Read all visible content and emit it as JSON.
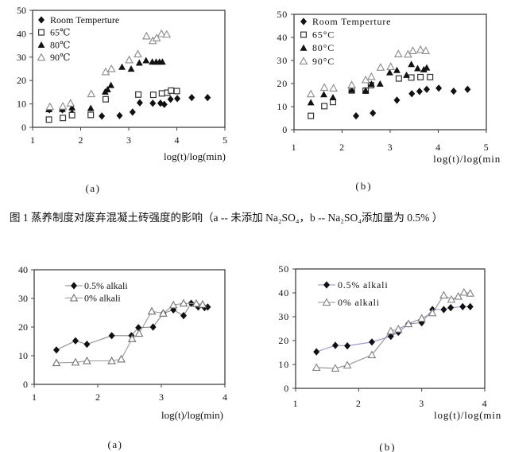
{
  "caption": {
    "text": "图 1 蒸养制度对废弃混凝土砖强度的影响（a -- 未添加 Na₂SO₄，b -- Na₂SO₄添加量为 0.5% ）"
  },
  "colors": {
    "frame": "#404040",
    "marker_black": "#111111",
    "open_square_stroke": "#333333",
    "open_triangle_stroke": "#8a8a8a",
    "line_gray": "#949494",
    "line_blue": "#9191cc"
  },
  "chart_data": [
    {
      "id": "top_a",
      "type": "scatter",
      "sub_label": "(a)",
      "xlabel": "log(t)/log(min)",
      "ylabel": "",
      "xlim": [
        1,
        5
      ],
      "ylim": [
        0,
        50
      ],
      "xticks": [
        1,
        2,
        3,
        4,
        5
      ],
      "yticks": [
        0,
        10,
        20,
        30,
        40,
        50
      ],
      "grid": false,
      "legend_position": "top-left-inside",
      "series": [
        {
          "name": "Room Temperture",
          "marker": "diamond-filled",
          "fill": "#111111",
          "points": [
            [
              1.35,
              7.5
            ],
            [
              1.62,
              7.5
            ],
            [
              1.82,
              6.0
            ],
            [
              2.44,
              4.8
            ],
            [
              2.81,
              5.0
            ],
            [
              3.08,
              6.5
            ],
            [
              3.23,
              10.5
            ],
            [
              3.5,
              10.3
            ],
            [
              3.66,
              10.3
            ],
            [
              3.74,
              9.8
            ],
            [
              3.87,
              12.0
            ],
            [
              4.01,
              12.3
            ],
            [
              4.31,
              12.7
            ],
            [
              4.64,
              12.7
            ]
          ]
        },
        {
          "name": "65℃",
          "marker": "square-open",
          "stroke": "#333333",
          "points": [
            [
              1.34,
              3.3
            ],
            [
              1.63,
              4.0
            ],
            [
              1.82,
              5.2
            ],
            [
              2.21,
              5.3
            ],
            [
              2.52,
              12.0
            ],
            [
              3.2,
              14.0
            ],
            [
              3.51,
              13.9
            ],
            [
              3.69,
              14.5
            ],
            [
              3.8,
              14.8
            ],
            [
              3.88,
              15.7
            ],
            [
              4.0,
              15.5
            ]
          ]
        },
        {
          "name": "80℃",
          "marker": "triangle-filled",
          "fill": "#111111",
          "points": [
            [
              1.34,
              7.7
            ],
            [
              1.62,
              7.8
            ],
            [
              1.82,
              8.5
            ],
            [
              2.21,
              8.2
            ],
            [
              2.51,
              15.2
            ],
            [
              2.56,
              16.2
            ],
            [
              2.63,
              18.0
            ],
            [
              2.86,
              25.8
            ],
            [
              3.05,
              25.0
            ],
            [
              3.22,
              27.6
            ],
            [
              3.36,
              28.6
            ],
            [
              3.49,
              28.0
            ],
            [
              3.57,
              28.0
            ],
            [
              3.64,
              28.0
            ],
            [
              3.7,
              28.0
            ]
          ]
        },
        {
          "name": "90℃",
          "marker": "triangle-open",
          "stroke": "#8a8a8a",
          "points": [
            [
              1.36,
              8.8
            ],
            [
              1.63,
              9.0
            ],
            [
              1.79,
              10.3
            ],
            [
              2.22,
              14.3
            ],
            [
              2.52,
              23.7
            ],
            [
              2.64,
              25.0
            ],
            [
              3.01,
              28.8
            ],
            [
              3.19,
              31.3
            ],
            [
              3.37,
              39.0
            ],
            [
              3.5,
              37.0
            ],
            [
              3.58,
              38.2
            ],
            [
              3.68,
              40.0
            ],
            [
              3.79,
              39.7
            ]
          ]
        }
      ]
    },
    {
      "id": "top_b",
      "type": "scatter",
      "sub_label": "(b)",
      "xlabel": "log(t)/log(min",
      "ylabel": "",
      "xlim": [
        1,
        5
      ],
      "ylim": [
        0,
        50
      ],
      "xticks": [
        1,
        2,
        3,
        4,
        5
      ],
      "yticks": [
        0,
        10,
        20,
        30,
        40,
        50
      ],
      "grid": false,
      "legend_position": "top-left-inside",
      "series": [
        {
          "name": "Room Temperture",
          "marker": "diamond-filled",
          "fill": "#111111",
          "points": [
            [
              2.29,
              6.0
            ],
            [
              2.64,
              7.2
            ],
            [
              3.14,
              12.8
            ],
            [
              3.45,
              15.6
            ],
            [
              3.61,
              16.6
            ],
            [
              3.76,
              17.5
            ],
            [
              4.01,
              18.0
            ],
            [
              4.32,
              16.7
            ],
            [
              4.61,
              17.5
            ]
          ]
        },
        {
          "name": "65°C",
          "marker": "square-open",
          "stroke": "#333333",
          "points": [
            [
              1.35,
              6.0
            ],
            [
              1.63,
              10.2
            ],
            [
              1.81,
              12.0
            ],
            [
              2.2,
              17.0
            ],
            [
              2.49,
              16.9
            ],
            [
              2.6,
              19.3
            ],
            [
              3.18,
              22.2
            ],
            [
              3.44,
              22.6
            ],
            [
              3.63,
              22.8
            ],
            [
              3.83,
              22.8
            ]
          ]
        },
        {
          "name": "80°C",
          "marker": "triangle-filled",
          "fill": "#111111",
          "points": [
            [
              1.35,
              11.8
            ],
            [
              1.62,
              15.3
            ],
            [
              1.81,
              14.0
            ],
            [
              2.2,
              17.3
            ],
            [
              2.49,
              17.0
            ],
            [
              2.61,
              19.8
            ],
            [
              2.79,
              19.9
            ],
            [
              2.99,
              24.8
            ],
            [
              3.14,
              25.8
            ],
            [
              3.34,
              23.7
            ],
            [
              3.44,
              28.4
            ],
            [
              3.57,
              26.6
            ],
            [
              3.7,
              26.1
            ],
            [
              3.76,
              26.9
            ]
          ]
        },
        {
          "name": "90°C",
          "marker": "triangle-open",
          "stroke": "#8a8a8a",
          "points": [
            [
              1.35,
              15.5
            ],
            [
              1.63,
              18.3
            ],
            [
              1.82,
              18.0
            ],
            [
              2.2,
              19.4
            ],
            [
              2.49,
              21.6
            ],
            [
              2.61,
              23.0
            ],
            [
              2.8,
              27.0
            ],
            [
              3.01,
              27.3
            ],
            [
              3.17,
              32.8
            ],
            [
              3.37,
              32.7
            ],
            [
              3.47,
              34.2
            ],
            [
              3.63,
              34.7
            ],
            [
              3.74,
              34.2
            ]
          ]
        }
      ]
    },
    {
      "id": "bottom_a",
      "type": "line",
      "sub_label": "(a)",
      "xlabel": "log(t)/log(min)",
      "ylabel": "",
      "xlim": [
        1,
        4
      ],
      "ylim": [
        0,
        40
      ],
      "xticks": [
        1,
        2,
        3,
        4
      ],
      "yticks": [
        0,
        10,
        20,
        30,
        40
      ],
      "grid": false,
      "legend_position": "top-left-inside",
      "series": [
        {
          "name": "0.5% alkali",
          "marker": "diamond-filled",
          "fill": "#111111",
          "line_color": "#8a8a8a",
          "points": [
            [
              1.35,
              12.0
            ],
            [
              1.65,
              15.2
            ],
            [
              1.83,
              14.0
            ],
            [
              2.22,
              17.0
            ],
            [
              2.53,
              17.0
            ],
            [
              2.64,
              19.8
            ],
            [
              2.87,
              20.0
            ],
            [
              3.03,
              24.8
            ],
            [
              3.19,
              26.0
            ],
            [
              3.35,
              24.0
            ],
            [
              3.47,
              28.3
            ],
            [
              3.58,
              27.0
            ],
            [
              3.68,
              26.8
            ],
            [
              3.73,
              27.0
            ]
          ]
        },
        {
          "name": "0% alkali",
          "marker": "triangle-open",
          "stroke": "#707070",
          "line_color": "#9a9a9a",
          "points": [
            [
              1.35,
              7.5
            ],
            [
              1.65,
              7.7
            ],
            [
              1.83,
              8.2
            ],
            [
              2.22,
              8.2
            ],
            [
              2.37,
              8.8
            ],
            [
              2.54,
              15.9
            ],
            [
              2.65,
              17.8
            ],
            [
              2.85,
              25.5
            ],
            [
              3.03,
              24.8
            ],
            [
              3.19,
              27.7
            ],
            [
              3.35,
              28.3
            ],
            [
              3.55,
              28.2
            ],
            [
              3.65,
              27.9
            ]
          ]
        }
      ]
    },
    {
      "id": "bottom_b",
      "type": "line",
      "sub_label": "(b)",
      "xlabel": "log(t)/log(min",
      "ylabel": "",
      "xlim": [
        1,
        4
      ],
      "ylim": [
        0,
        50
      ],
      "xticks": [
        1,
        2,
        3,
        4
      ],
      "yticks": [
        0,
        10,
        20,
        30,
        40,
        50
      ],
      "grid": false,
      "legend_position": "top-left-inside",
      "series": [
        {
          "name": "0.5% alkali",
          "marker": "diamond-filled",
          "fill": "#111111",
          "line_color": "#9191cc",
          "points": [
            [
              1.33,
              15.3
            ],
            [
              1.63,
              18.0
            ],
            [
              1.82,
              17.8
            ],
            [
              2.21,
              19.4
            ],
            [
              2.51,
              21.8
            ],
            [
              2.63,
              23.5
            ],
            [
              2.79,
              27.0
            ],
            [
              3.0,
              27.5
            ],
            [
              3.17,
              33.0
            ],
            [
              3.35,
              33.0
            ],
            [
              3.46,
              33.8
            ],
            [
              3.65,
              34.2
            ],
            [
              3.77,
              34.2
            ]
          ]
        },
        {
          "name": "0% alkali",
          "marker": "triangle-open",
          "stroke": "#808080",
          "line_color": "#909090",
          "points": [
            [
              1.33,
              8.7
            ],
            [
              1.63,
              8.4
            ],
            [
              1.82,
              9.7
            ],
            [
              2.21,
              14.0
            ],
            [
              2.51,
              24.0
            ],
            [
              2.63,
              24.8
            ],
            [
              2.79,
              27.0
            ],
            [
              3.0,
              29.3
            ],
            [
              3.17,
              31.6
            ],
            [
              3.35,
              39.0
            ],
            [
              3.47,
              37.2
            ],
            [
              3.58,
              38.5
            ],
            [
              3.67,
              40.2
            ],
            [
              3.77,
              39.8
            ]
          ]
        }
      ]
    }
  ]
}
